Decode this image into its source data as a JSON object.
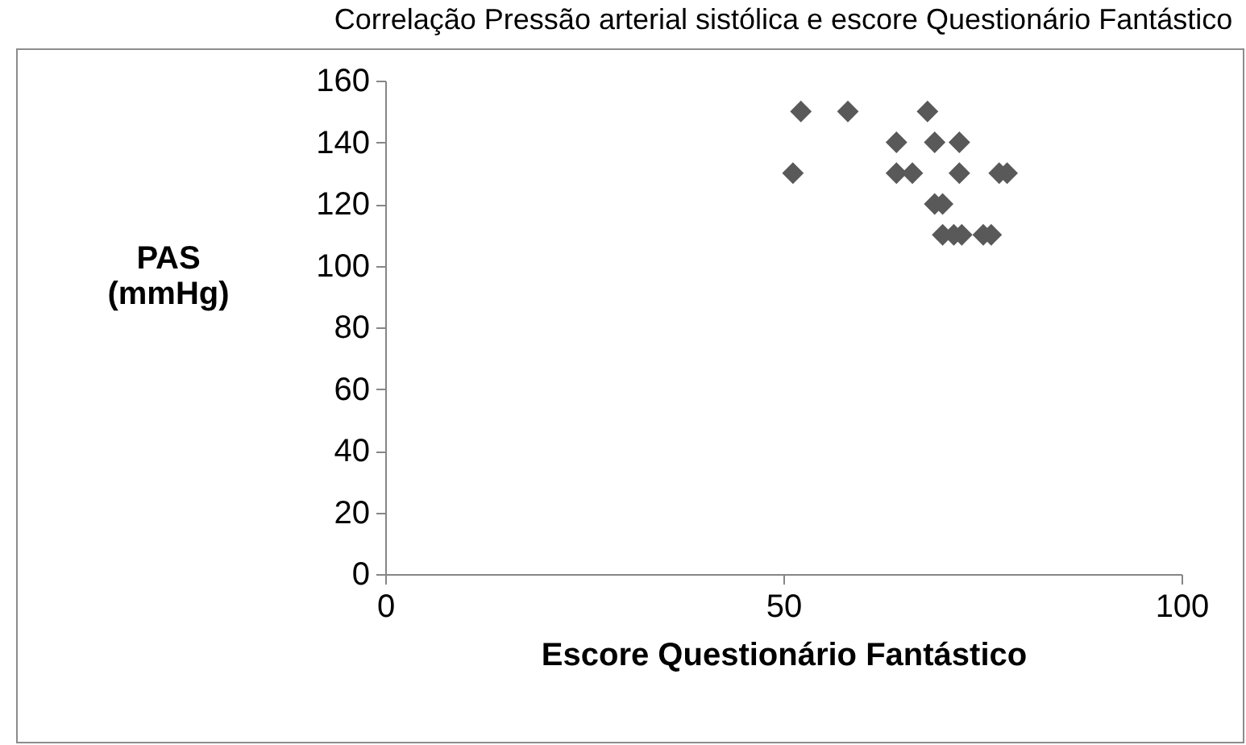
{
  "chart_data": {
    "type": "scatter",
    "title": "Correlação Pressão arterial sistólica e escore Questionário Fantástico",
    "xlabel": "Escore Questionário Fantástico",
    "ylabel": [
      "PAS",
      "(mmHg)"
    ],
    "x": [
      52.2,
      58.1,
      68.1,
      64.2,
      69.0,
      72.1,
      51.2,
      64.2,
      66.2,
      72.1,
      77.1,
      78.1,
      69.0,
      70.0,
      70.0,
      71.4,
      72.4,
      75.1,
      76.1
    ],
    "series": [
      {
        "color": "#595959",
        "values": [
          150,
          150,
          150,
          140,
          140,
          140,
          130,
          130,
          130,
          130,
          130,
          130,
          120,
          120,
          110,
          110,
          110,
          110,
          110
        ]
      }
    ],
    "xlim": [
      0,
      100
    ],
    "xticks": [
      0,
      50,
      100
    ],
    "ylim": [
      0,
      160
    ],
    "yticks": [
      0,
      20,
      40,
      60,
      80,
      100,
      120,
      140,
      160
    ],
    "marker": "diamond",
    "grid": false,
    "legend": false
  }
}
